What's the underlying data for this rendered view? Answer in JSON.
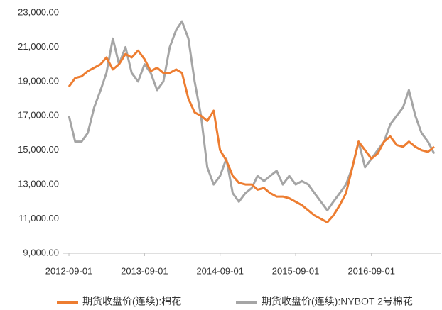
{
  "chart_data": {
    "type": "line",
    "x": [
      "2012-09-01",
      "2012-10-01",
      "2012-11-01",
      "2012-12-01",
      "2013-01-01",
      "2013-02-01",
      "2013-03-01",
      "2013-04-01",
      "2013-05-01",
      "2013-06-01",
      "2013-07-01",
      "2013-08-01",
      "2013-09-01",
      "2013-10-01",
      "2013-11-01",
      "2013-12-01",
      "2014-01-01",
      "2014-02-01",
      "2014-03-01",
      "2014-04-01",
      "2014-05-01",
      "2014-06-01",
      "2014-07-01",
      "2014-08-01",
      "2014-09-01",
      "2014-10-01",
      "2014-11-01",
      "2014-12-01",
      "2015-01-01",
      "2015-02-01",
      "2015-03-01",
      "2015-04-01",
      "2015-05-01",
      "2015-06-01",
      "2015-07-01",
      "2015-08-01",
      "2015-09-01",
      "2015-10-01",
      "2015-11-01",
      "2015-12-01",
      "2016-01-01",
      "2016-02-01",
      "2016-03-01",
      "2016-04-01",
      "2016-05-01",
      "2016-06-01",
      "2016-07-01",
      "2016-08-01",
      "2016-09-01",
      "2016-10-01",
      "2016-11-01",
      "2016-12-01",
      "2017-01-01",
      "2017-02-01",
      "2017-03-01",
      "2017-04-01",
      "2017-05-01",
      "2017-06-01",
      "2017-07-01"
    ],
    "series": [
      {
        "name": "期货收盘价(连续):棉花",
        "color": "#ed7d31",
        "values": [
          18700,
          19200,
          19300,
          19600,
          19800,
          20000,
          20400,
          19700,
          20000,
          20600,
          20400,
          20800,
          20300,
          19600,
          19800,
          19500,
          19500,
          19700,
          19500,
          18000,
          17200,
          17000,
          16700,
          17300,
          15000,
          14400,
          13500,
          13100,
          13000,
          13000,
          12700,
          12800,
          12500,
          12300,
          12300,
          12200,
          12000,
          11800,
          11500,
          11200,
          11000,
          10800,
          11200,
          11800,
          12500,
          14000,
          15500,
          15000,
          14500,
          14800,
          15500,
          15800,
          15300,
          15200,
          15500,
          15200,
          15000,
          14900,
          15200
        ]
      },
      {
        "name": "期货收盘价(连续):NYBOT 2号棉花",
        "color": "#a5a5a5",
        "values": [
          17000,
          15500,
          15500,
          16000,
          17500,
          18500,
          19500,
          21500,
          20000,
          21000,
          19500,
          19000,
          20000,
          19500,
          18500,
          19000,
          21000,
          22000,
          22500,
          21500,
          19000,
          17000,
          14000,
          13000,
          13500,
          14500,
          12500,
          12000,
          12500,
          12800,
          13500,
          13200,
          13500,
          13800,
          13000,
          13500,
          13000,
          13200,
          13000,
          12500,
          12000,
          11500,
          12000,
          12500,
          13000,
          14000,
          15500,
          14000,
          14500,
          15000,
          15500,
          16500,
          17000,
          17500,
          18500,
          17000,
          16000,
          15500,
          14800
        ]
      }
    ],
    "xlim": [
      "2012-08-01",
      "2017-08-01"
    ],
    "xticks": [
      "2012-09-01",
      "2013-09-01",
      "2014-09-01",
      "2015-09-01",
      "2016-09-01"
    ],
    "ylim": [
      9000,
      23000
    ],
    "yticks": [
      {
        "value": 9000,
        "label": "9,000.00"
      },
      {
        "value": 11000,
        "label": "11,000.00"
      },
      {
        "value": 13000,
        "label": "13,000.00"
      },
      {
        "value": 15000,
        "label": "15,000.00"
      },
      {
        "value": 17000,
        "label": "17,000.00"
      },
      {
        "value": 19000,
        "label": "19,000.00"
      },
      {
        "value": 21000,
        "label": "21,000.00"
      },
      {
        "value": 23000,
        "label": "23,000.00"
      }
    ],
    "legend": "bottom"
  }
}
